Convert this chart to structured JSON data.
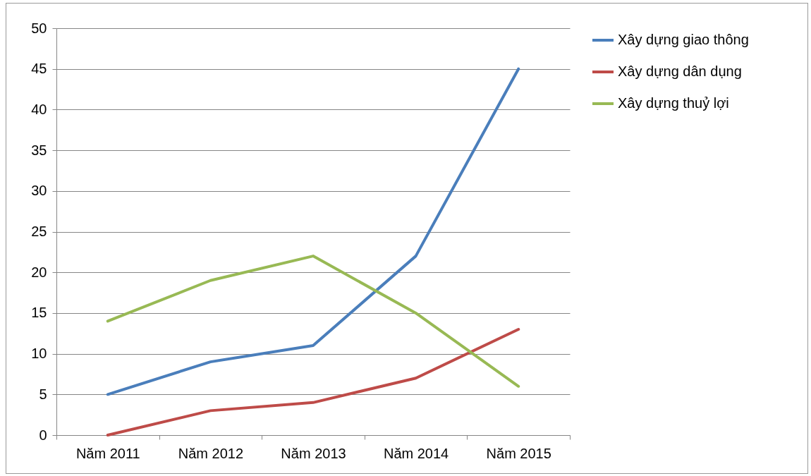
{
  "chart_data": {
    "type": "line",
    "categories": [
      "Năm 2011",
      "Năm 2012",
      "Năm 2013",
      "Năm 2014",
      "Năm 2015"
    ],
    "series": [
      {
        "name": "Xây dựng giao thông",
        "color": "#4a7ebb",
        "values": [
          5,
          9,
          11,
          22,
          45
        ]
      },
      {
        "name": "Xây dựng dân dụng",
        "color": "#be4b48",
        "values": [
          0,
          3,
          4,
          7,
          13
        ]
      },
      {
        "name": "Xây dựng thuỷ lợi",
        "color": "#98b954",
        "values": [
          14,
          19,
          22,
          15,
          6
        ]
      }
    ],
    "ylim": [
      0,
      50
    ],
    "yticks": [
      0,
      5,
      10,
      15,
      20,
      25,
      30,
      35,
      40,
      45,
      50
    ],
    "grid": "y",
    "legend": "right"
  }
}
